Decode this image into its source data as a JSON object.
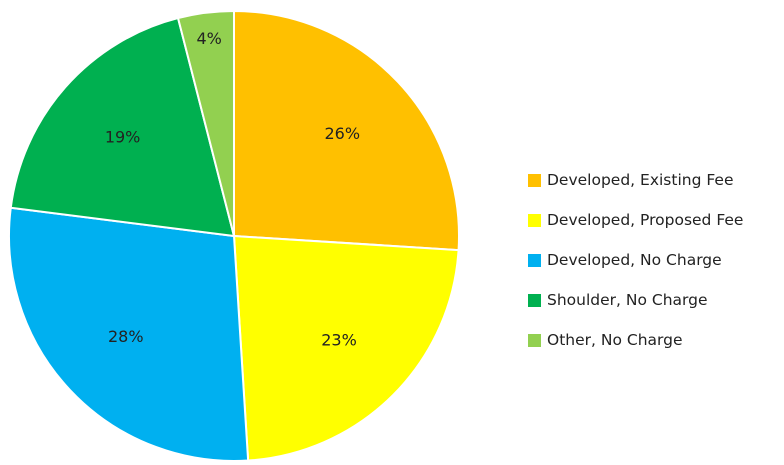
{
  "chart_data": {
    "type": "pie",
    "title": "",
    "slices": [
      {
        "label": "Developed, Existing Fee",
        "value": 26,
        "display": "26%",
        "color": "#FFC000"
      },
      {
        "label": "Developed, Proposed Fee",
        "value": 23,
        "display": "23%",
        "color": "#FFFF00"
      },
      {
        "label": "Developed, No Charge",
        "value": 28,
        "display": "28%",
        "color": "#00B0F0"
      },
      {
        "label": "Shoulder, No Charge",
        "value": 19,
        "display": "19%",
        "color": "#00B050"
      },
      {
        "label": "Other, No Charge",
        "value": 4,
        "display": "4%",
        "color": "#92D050"
      }
    ],
    "start": "12 o'clock",
    "direction": "clockwise",
    "legend_position": "right"
  }
}
